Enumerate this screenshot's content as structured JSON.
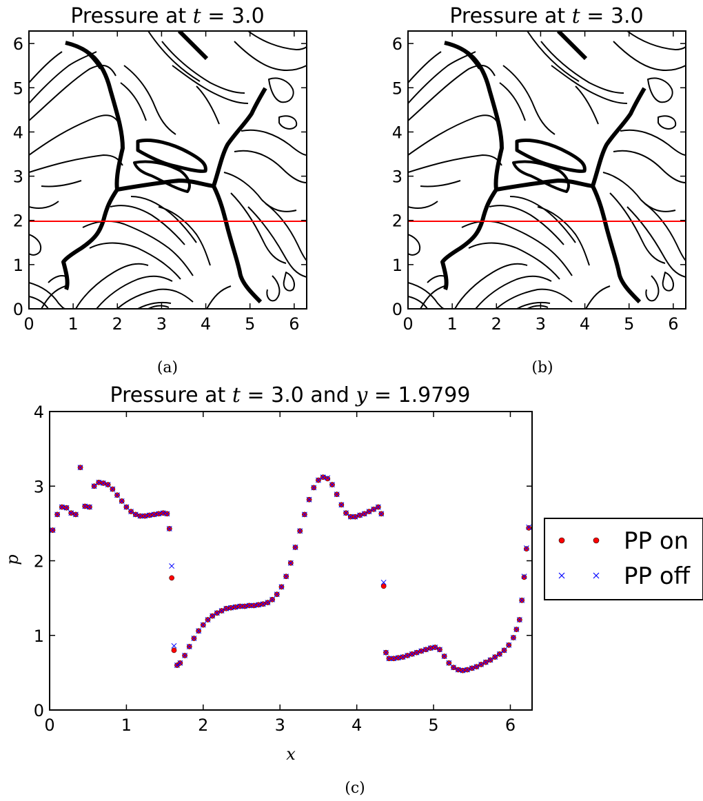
{
  "panel_a": {
    "title": "Pressure at t = 3.0",
    "caption": "(a)",
    "xticks": [
      "0",
      "1",
      "2",
      "3",
      "4",
      "5",
      "6"
    ],
    "yticks": [
      "0",
      "1",
      "2",
      "3",
      "4",
      "5",
      "6"
    ],
    "slice_y": 1.9799,
    "slice_color": "#ff0000"
  },
  "panel_b": {
    "title": "Pressure at t = 3.0",
    "caption": "(b)",
    "xticks": [
      "0",
      "1",
      "2",
      "3",
      "4",
      "5",
      "6"
    ],
    "yticks": [
      "0",
      "1",
      "2",
      "3",
      "4",
      "5",
      "6"
    ],
    "slice_y": 1.9799,
    "slice_color": "#ff0000"
  },
  "panel_c": {
    "title": "Pressure at t = 3.0 and y = 1.9799",
    "caption": "(c)",
    "xlabel": "x",
    "ylabel": "p",
    "xticks": [
      "0",
      "1",
      "2",
      "3",
      "4",
      "5",
      "6"
    ],
    "yticks": [
      "0",
      "1",
      "2",
      "3",
      "4"
    ]
  },
  "chart_data": [
    {
      "type": "contour",
      "title": "Pressure at t = 3.0",
      "xlim": [
        0,
        6.283
      ],
      "ylim": [
        0,
        6.283
      ],
      "overlay_line_y": 1.9799,
      "overlay_line_color": "#ff0000"
    },
    {
      "type": "contour",
      "title": "Pressure at t = 3.0",
      "xlim": [
        0,
        6.283
      ],
      "ylim": [
        0,
        6.283
      ],
      "overlay_line_y": 1.9799,
      "overlay_line_color": "#ff0000"
    },
    {
      "type": "scatter",
      "title": "Pressure at t = 3.0 and y = 1.9799",
      "xlabel": "x",
      "ylabel": "p",
      "xlim": [
        0,
        6.283
      ],
      "ylim": [
        0,
        4
      ],
      "legend": "right, outside plot",
      "series": [
        {
          "name": "PP on",
          "marker": "circle",
          "color": "#ff0000",
          "points": [
            [
              0.04,
              2.41
            ],
            [
              0.1,
              2.62
            ],
            [
              0.16,
              2.72
            ],
            [
              0.22,
              2.71
            ],
            [
              0.28,
              2.64
            ],
            [
              0.34,
              2.62
            ],
            [
              0.4,
              3.25
            ],
            [
              0.46,
              2.73
            ],
            [
              0.52,
              2.72
            ],
            [
              0.58,
              3.0
            ],
            [
              0.64,
              3.05
            ],
            [
              0.7,
              3.04
            ],
            [
              0.76,
              3.02
            ],
            [
              0.82,
              2.96
            ],
            [
              0.88,
              2.88
            ],
            [
              0.94,
              2.8
            ],
            [
              1.0,
              2.72
            ],
            [
              1.06,
              2.66
            ],
            [
              1.12,
              2.62
            ],
            [
              1.18,
              2.6
            ],
            [
              1.24,
              2.6
            ],
            [
              1.3,
              2.61
            ],
            [
              1.36,
              2.62
            ],
            [
              1.42,
              2.63
            ],
            [
              1.48,
              2.64
            ],
            [
              1.53,
              2.63
            ],
            [
              1.56,
              2.43
            ],
            [
              1.59,
              1.77
            ],
            [
              1.62,
              0.8
            ],
            [
              1.66,
              0.6
            ],
            [
              1.7,
              0.63
            ],
            [
              1.76,
              0.73
            ],
            [
              1.82,
              0.85
            ],
            [
              1.88,
              0.96
            ],
            [
              1.94,
              1.06
            ],
            [
              2.0,
              1.14
            ],
            [
              2.06,
              1.21
            ],
            [
              2.12,
              1.26
            ],
            [
              2.18,
              1.3
            ],
            [
              2.24,
              1.33
            ],
            [
              2.3,
              1.36
            ],
            [
              2.36,
              1.37
            ],
            [
              2.42,
              1.38
            ],
            [
              2.48,
              1.39
            ],
            [
              2.54,
              1.39
            ],
            [
              2.6,
              1.4
            ],
            [
              2.66,
              1.4
            ],
            [
              2.72,
              1.41
            ],
            [
              2.78,
              1.42
            ],
            [
              2.84,
              1.44
            ],
            [
              2.9,
              1.48
            ],
            [
              2.96,
              1.55
            ],
            [
              3.02,
              1.65
            ],
            [
              3.08,
              1.79
            ],
            [
              3.14,
              1.97
            ],
            [
              3.2,
              2.18
            ],
            [
              3.26,
              2.4
            ],
            [
              3.32,
              2.62
            ],
            [
              3.38,
              2.82
            ],
            [
              3.44,
              2.98
            ],
            [
              3.5,
              3.08
            ],
            [
              3.56,
              3.12
            ],
            [
              3.62,
              3.1
            ],
            [
              3.68,
              3.02
            ],
            [
              3.74,
              2.89
            ],
            [
              3.8,
              2.75
            ],
            [
              3.86,
              2.64
            ],
            [
              3.92,
              2.59
            ],
            [
              3.98,
              2.59
            ],
            [
              4.04,
              2.61
            ],
            [
              4.1,
              2.63
            ],
            [
              4.16,
              2.66
            ],
            [
              4.22,
              2.69
            ],
            [
              4.28,
              2.72
            ],
            [
              4.32,
              2.63
            ],
            [
              4.35,
              1.66
            ],
            [
              4.38,
              0.77
            ],
            [
              4.42,
              0.69
            ],
            [
              4.48,
              0.69
            ],
            [
              4.54,
              0.7
            ],
            [
              4.6,
              0.71
            ],
            [
              4.66,
              0.73
            ],
            [
              4.72,
              0.75
            ],
            [
              4.78,
              0.77
            ],
            [
              4.84,
              0.79
            ],
            [
              4.9,
              0.81
            ],
            [
              4.96,
              0.83
            ],
            [
              5.02,
              0.84
            ],
            [
              5.08,
              0.81
            ],
            [
              5.14,
              0.72
            ],
            [
              5.2,
              0.63
            ],
            [
              5.26,
              0.57
            ],
            [
              5.32,
              0.54
            ],
            [
              5.38,
              0.53
            ],
            [
              5.44,
              0.54
            ],
            [
              5.5,
              0.56
            ],
            [
              5.56,
              0.58
            ],
            [
              5.62,
              0.61
            ],
            [
              5.68,
              0.64
            ],
            [
              5.74,
              0.67
            ],
            [
              5.8,
              0.71
            ],
            [
              5.86,
              0.75
            ],
            [
              5.92,
              0.8
            ],
            [
              5.98,
              0.87
            ],
            [
              6.04,
              0.97
            ],
            [
              6.08,
              1.08
            ],
            [
              6.12,
              1.21
            ],
            [
              6.15,
              1.47
            ],
            [
              6.18,
              1.78
            ],
            [
              6.21,
              2.16
            ],
            [
              6.24,
              2.44
            ]
          ]
        },
        {
          "name": "PP off",
          "marker": "x",
          "color": "#0000ff",
          "points": [
            [
              0.04,
              2.41
            ],
            [
              0.1,
              2.62
            ],
            [
              0.16,
              2.72
            ],
            [
              0.22,
              2.71
            ],
            [
              0.28,
              2.64
            ],
            [
              0.34,
              2.62
            ],
            [
              0.4,
              3.25
            ],
            [
              0.46,
              2.73
            ],
            [
              0.52,
              2.72
            ],
            [
              0.58,
              3.0
            ],
            [
              0.64,
              3.05
            ],
            [
              0.7,
              3.04
            ],
            [
              0.76,
              3.02
            ],
            [
              0.82,
              2.96
            ],
            [
              0.88,
              2.88
            ],
            [
              0.94,
              2.8
            ],
            [
              1.0,
              2.72
            ],
            [
              1.06,
              2.66
            ],
            [
              1.12,
              2.62
            ],
            [
              1.18,
              2.6
            ],
            [
              1.24,
              2.6
            ],
            [
              1.3,
              2.61
            ],
            [
              1.36,
              2.62
            ],
            [
              1.42,
              2.63
            ],
            [
              1.48,
              2.64
            ],
            [
              1.53,
              2.63
            ],
            [
              1.56,
              2.43
            ],
            [
              1.59,
              1.93
            ],
            [
              1.62,
              0.86
            ],
            [
              1.66,
              0.6
            ],
            [
              1.7,
              0.63
            ],
            [
              1.76,
              0.73
            ],
            [
              1.82,
              0.85
            ],
            [
              1.88,
              0.96
            ],
            [
              1.94,
              1.06
            ],
            [
              2.0,
              1.14
            ],
            [
              2.06,
              1.21
            ],
            [
              2.12,
              1.26
            ],
            [
              2.18,
              1.3
            ],
            [
              2.24,
              1.33
            ],
            [
              2.3,
              1.36
            ],
            [
              2.36,
              1.37
            ],
            [
              2.42,
              1.38
            ],
            [
              2.48,
              1.39
            ],
            [
              2.54,
              1.39
            ],
            [
              2.6,
              1.4
            ],
            [
              2.66,
              1.4
            ],
            [
              2.72,
              1.41
            ],
            [
              2.78,
              1.42
            ],
            [
              2.84,
              1.44
            ],
            [
              2.9,
              1.48
            ],
            [
              2.96,
              1.55
            ],
            [
              3.02,
              1.65
            ],
            [
              3.08,
              1.79
            ],
            [
              3.14,
              1.97
            ],
            [
              3.2,
              2.18
            ],
            [
              3.26,
              2.4
            ],
            [
              3.32,
              2.62
            ],
            [
              3.38,
              2.82
            ],
            [
              3.44,
              2.98
            ],
            [
              3.5,
              3.08
            ],
            [
              3.56,
              3.12
            ],
            [
              3.62,
              3.11
            ],
            [
              3.68,
              3.02
            ],
            [
              3.74,
              2.89
            ],
            [
              3.8,
              2.75
            ],
            [
              3.86,
              2.64
            ],
            [
              3.92,
              2.59
            ],
            [
              3.98,
              2.59
            ],
            [
              4.04,
              2.61
            ],
            [
              4.1,
              2.63
            ],
            [
              4.16,
              2.66
            ],
            [
              4.22,
              2.69
            ],
            [
              4.28,
              2.72
            ],
            [
              4.32,
              2.63
            ],
            [
              4.35,
              1.71
            ],
            [
              4.38,
              0.77
            ],
            [
              4.42,
              0.69
            ],
            [
              4.48,
              0.69
            ],
            [
              4.54,
              0.7
            ],
            [
              4.6,
              0.71
            ],
            [
              4.66,
              0.73
            ],
            [
              4.72,
              0.75
            ],
            [
              4.78,
              0.77
            ],
            [
              4.84,
              0.79
            ],
            [
              4.9,
              0.81
            ],
            [
              4.96,
              0.83
            ],
            [
              5.02,
              0.84
            ],
            [
              5.08,
              0.81
            ],
            [
              5.14,
              0.72
            ],
            [
              5.2,
              0.63
            ],
            [
              5.26,
              0.57
            ],
            [
              5.32,
              0.54
            ],
            [
              5.38,
              0.53
            ],
            [
              5.44,
              0.54
            ],
            [
              5.5,
              0.56
            ],
            [
              5.56,
              0.58
            ],
            [
              5.62,
              0.61
            ],
            [
              5.68,
              0.64
            ],
            [
              5.74,
              0.67
            ],
            [
              5.8,
              0.71
            ],
            [
              5.86,
              0.75
            ],
            [
              5.92,
              0.8
            ],
            [
              5.98,
              0.87
            ],
            [
              6.04,
              0.97
            ],
            [
              6.08,
              1.08
            ],
            [
              6.12,
              1.21
            ],
            [
              6.15,
              1.47
            ],
            [
              6.18,
              1.79
            ],
            [
              6.21,
              2.17
            ],
            [
              6.24,
              2.45
            ]
          ]
        }
      ]
    }
  ]
}
